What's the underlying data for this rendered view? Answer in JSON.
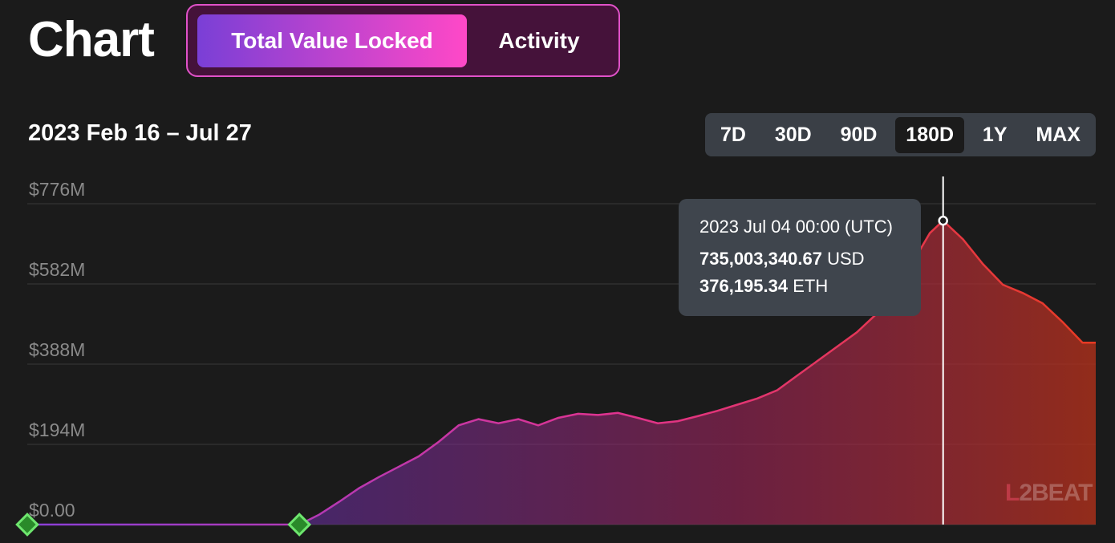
{
  "header": {
    "title": "Chart",
    "tabs": [
      {
        "label": "Total Value Locked",
        "active": true
      },
      {
        "label": "Activity",
        "active": false
      }
    ]
  },
  "range_label": "2023 Feb 16 – Jul 27",
  "periods": [
    {
      "label": "7D",
      "selected": false
    },
    {
      "label": "30D",
      "selected": false
    },
    {
      "label": "90D",
      "selected": false
    },
    {
      "label": "180D",
      "selected": true
    },
    {
      "label": "1Y",
      "selected": false
    },
    {
      "label": "MAX",
      "selected": false
    }
  ],
  "tooltip": {
    "date": "2023 Jul 04 00:00 (UTC)",
    "usd_value": "735,003,340.67",
    "usd_unit": "USD",
    "eth_value": "376,195.34",
    "eth_unit": "ETH"
  },
  "logo_text": {
    "l": "L",
    "two": "2",
    "beat": "BEAT"
  },
  "colors": {
    "background": "#1b1b1b",
    "gradient_start": "#8a3fd8",
    "gradient_mid": "#e0338f",
    "gradient_end": "#e83a22"
  },
  "chart_data": {
    "type": "area",
    "ylabel": "",
    "y_tick_labels": [
      "$0.00",
      "$194M",
      "$388M",
      "$582M",
      "$776M"
    ],
    "y_tick_values": [
      0,
      194,
      388,
      582,
      776
    ],
    "ylim": [
      0,
      776
    ],
    "unit": "USD millions",
    "grid": true,
    "x_start": "2023-02-16",
    "x_end": "2023-07-27",
    "highlight": {
      "date": "2023-07-04",
      "value": 735.0
    },
    "markers": [
      "2023-02-16",
      "2023-03-29"
    ],
    "points": [
      [
        "2023-02-16",
        0
      ],
      [
        "2023-03-29",
        0
      ],
      [
        "2023-04-01",
        24
      ],
      [
        "2023-04-04",
        55
      ],
      [
        "2023-04-07",
        88
      ],
      [
        "2023-04-10",
        115
      ],
      [
        "2023-04-13",
        140
      ],
      [
        "2023-04-16",
        165
      ],
      [
        "2023-04-19",
        200
      ],
      [
        "2023-04-22",
        240
      ],
      [
        "2023-04-25",
        255
      ],
      [
        "2023-04-28",
        245
      ],
      [
        "2023-05-01",
        255
      ],
      [
        "2023-05-04",
        240
      ],
      [
        "2023-05-07",
        258
      ],
      [
        "2023-05-10",
        268
      ],
      [
        "2023-05-13",
        265
      ],
      [
        "2023-05-16",
        270
      ],
      [
        "2023-05-19",
        258
      ],
      [
        "2023-05-22",
        245
      ],
      [
        "2023-05-25",
        250
      ],
      [
        "2023-05-28",
        262
      ],
      [
        "2023-05-31",
        275
      ],
      [
        "2023-06-03",
        290
      ],
      [
        "2023-06-06",
        305
      ],
      [
        "2023-06-09",
        325
      ],
      [
        "2023-06-12",
        360
      ],
      [
        "2023-06-15",
        395
      ],
      [
        "2023-06-18",
        430
      ],
      [
        "2023-06-21",
        465
      ],
      [
        "2023-06-24",
        510
      ],
      [
        "2023-06-27",
        570
      ],
      [
        "2023-06-30",
        650
      ],
      [
        "2023-07-02",
        705
      ],
      [
        "2023-07-04",
        735
      ],
      [
        "2023-07-07",
        690
      ],
      [
        "2023-07-10",
        630
      ],
      [
        "2023-07-13",
        580
      ],
      [
        "2023-07-16",
        560
      ],
      [
        "2023-07-19",
        535
      ],
      [
        "2023-07-22",
        490
      ],
      [
        "2023-07-25",
        440
      ],
      [
        "2023-07-27",
        440
      ]
    ]
  }
}
